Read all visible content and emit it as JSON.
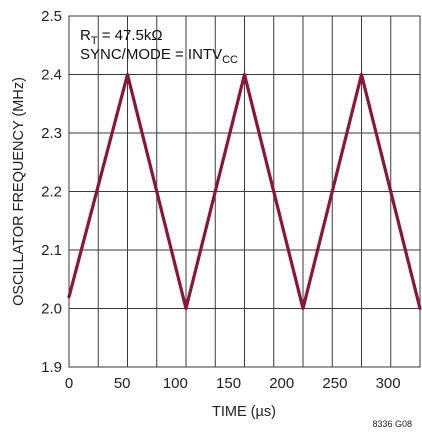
{
  "chart_data": {
    "type": "line",
    "ylabel": "OSCILLATOR FREQUENCY (MHz)",
    "xlabel": "TIME (µs)",
    "xlim": [
      0,
      330
    ],
    "ylim": [
      1.9,
      2.5
    ],
    "xticks": [
      0,
      50,
      100,
      150,
      200,
      250,
      300
    ],
    "yticks": [
      1.9,
      2.0,
      2.1,
      2.2,
      2.3,
      2.4,
      2.5
    ],
    "xtick_labels": [
      "0",
      "50",
      "100",
      "150",
      "200",
      "250",
      "300"
    ],
    "ytick_labels": [
      "1.9",
      "2.0",
      "2.1",
      "2.2",
      "2.3",
      "2.4",
      "2.5"
    ],
    "xgrid_step": 27.5,
    "grid": true,
    "annotations": {
      "rt_main": "R",
      "rt_sub": "T",
      "rt_rest": " = 47.5kΩ",
      "sync_main": "SYNC/MODE = INTV",
      "sync_sub": "CC"
    },
    "figure_note": "8336 G08",
    "series": [
      {
        "color": "#8b1538",
        "x": [
          0,
          55,
          110,
          165,
          220,
          275,
          330
        ],
        "y": [
          2.02,
          2.4,
          2.0,
          2.4,
          2.0,
          2.4,
          2.0
        ]
      }
    ]
  }
}
